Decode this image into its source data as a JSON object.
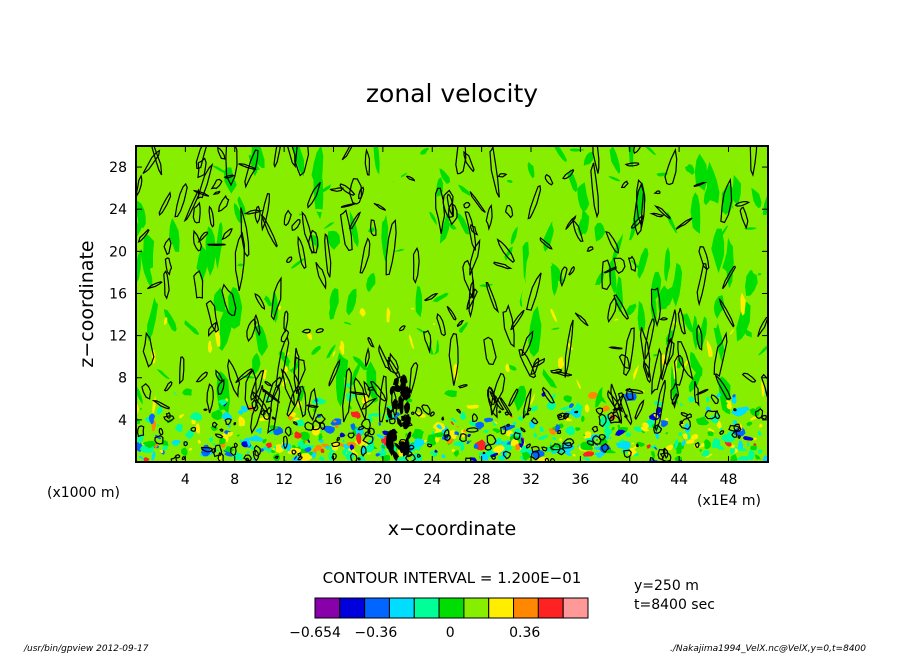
{
  "chart_data": {
    "type": "heatmap",
    "title": "zonal velocity",
    "xlabel": "x−coordinate",
    "ylabel": "z−coordinate",
    "x_unit_label": "(x1E4 m)",
    "y_unit_label": "(x1000 m)",
    "xlim": [
      0,
      51.2
    ],
    "ylim": [
      0,
      30
    ],
    "x_ticks": [
      4,
      8,
      12,
      16,
      20,
      24,
      28,
      32,
      36,
      40,
      44,
      48
    ],
    "y_ticks": [
      4,
      8,
      12,
      16,
      20,
      24,
      28
    ],
    "contour_interval_label": "CONTOUR INTERVAL = 1.200E−01",
    "contour_interval": 0.12,
    "slice_info": [
      "y=250 m",
      "t=8400 sec"
    ],
    "colorbar": {
      "colors": [
        "#8800aa",
        "#0000dd",
        "#0066ff",
        "#00ddff",
        "#00ff99",
        "#00dd00",
        "#88ee00",
        "#ffee00",
        "#ff8800",
        "#ff2222",
        "#ff9999"
      ],
      "labels": [
        {
          "text": "−0.654",
          "value": -0.654
        },
        {
          "text": "−0.36",
          "value": -0.36
        },
        {
          "text": "0",
          "value": 0
        },
        {
          "text": "0.36",
          "value": 0.36
        }
      ],
      "min": -0.654,
      "step": 0.12
    },
    "background_level_color": "#88ee00",
    "field_description": "turbulent zonal velocity field; mostly 0 to 0.12 (green) aloft, strongly mixed with negative (cyan/blue) and positive (yellow/red) patches below z=6"
  },
  "footer": {
    "left": "/usr/bin/gpview   2012-09-17",
    "right": "./Nakajima1994_VelX.nc@VelX,y=0,t=8400"
  }
}
